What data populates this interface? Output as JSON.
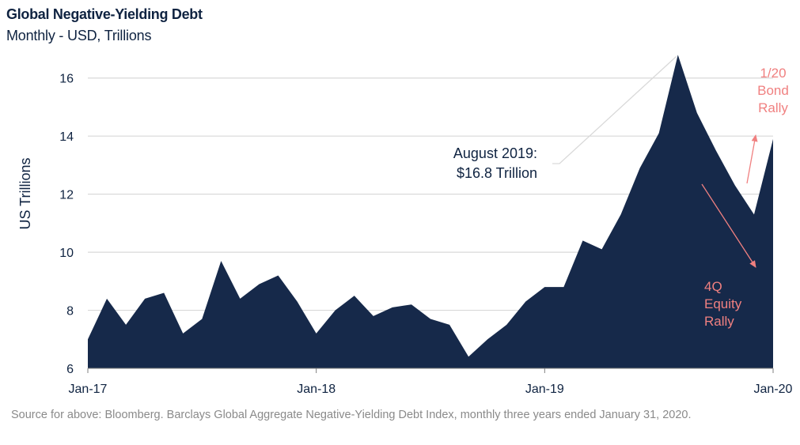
{
  "header": {
    "title": "Global Negative-Yielding Debt",
    "subtitle": "Monthly - USD, Trillions"
  },
  "footer": {
    "source": "Source for above: Bloomberg. Barclays Global Aggregate Negative-Yielding Debt Index, monthly three years ended January 31, 2020."
  },
  "colors": {
    "area": "#16294a",
    "grid": "#d9d9d9",
    "axis_text": "#0f2341",
    "annotation_dark": "#0f2341",
    "annotation_red": "#f08080",
    "leader_line": "#d9d9d9"
  },
  "chart_data": {
    "type": "area",
    "title": "Global Negative-Yielding Debt",
    "subtitle": "Monthly - USD, Trillions",
    "xlabel": "",
    "ylabel": "US Trillions",
    "ylim": [
      6,
      17
    ],
    "yticks": [
      6,
      8,
      10,
      12,
      14,
      16
    ],
    "grid": true,
    "legend": "none",
    "x": [
      "Jan-17",
      "Feb-17",
      "Mar-17",
      "Apr-17",
      "May-17",
      "Jun-17",
      "Jul-17",
      "Aug-17",
      "Sep-17",
      "Oct-17",
      "Nov-17",
      "Dec-17",
      "Jan-18",
      "Feb-18",
      "Mar-18",
      "Apr-18",
      "May-18",
      "Jun-18",
      "Jul-18",
      "Aug-18",
      "Sep-18",
      "Oct-18",
      "Nov-18",
      "Dec-18",
      "Jan-19",
      "Feb-19",
      "Mar-19",
      "Apr-19",
      "May-19",
      "Jun-19",
      "Jul-19",
      "Aug-19",
      "Sep-19",
      "Oct-19",
      "Nov-19",
      "Dec-19",
      "Jan-20"
    ],
    "xtick_labels": [
      "Jan-17",
      "Jan-18",
      "Jan-19",
      "Jan-20"
    ],
    "xtick_indices": [
      0,
      12,
      24,
      36
    ],
    "series": [
      {
        "values": [
          7.0,
          8.4,
          7.5,
          8.4,
          8.6,
          7.2,
          7.7,
          9.7,
          8.4,
          8.9,
          9.2,
          8.3,
          7.2,
          8.0,
          8.5,
          7.8,
          8.1,
          8.2,
          7.7,
          7.5,
          6.4,
          7.0,
          7.5,
          8.3,
          8.8,
          8.8,
          10.4,
          10.1,
          11.3,
          12.9,
          14.1,
          16.8,
          14.8,
          13.5,
          12.3,
          11.3,
          13.9
        ]
      }
    ],
    "annotations": [
      {
        "text_lines": [
          "August 2019:",
          "$16.8 Trillion"
        ],
        "x": "Aug-19",
        "y": 16.8
      },
      {
        "text_lines": [
          "1/20",
          "Bond",
          "Rally"
        ]
      },
      {
        "text_lines": [
          "4Q",
          "Equity",
          "Rally"
        ]
      }
    ]
  }
}
